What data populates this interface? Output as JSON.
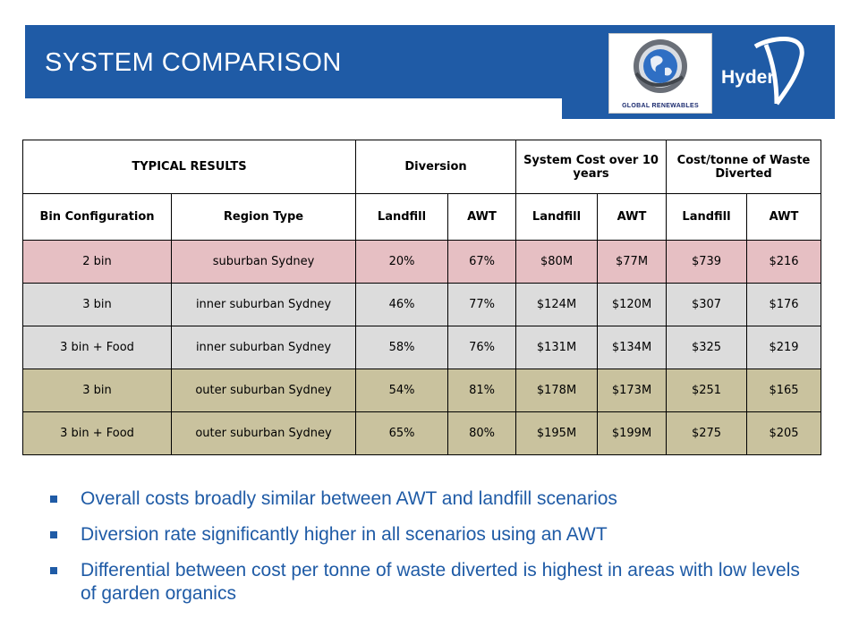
{
  "header": {
    "title": "SYSTEM COMPARISON",
    "partner_logo_text": "GLOBAL RENEWABLES",
    "brand_name": "Hyder",
    "banner_color": "#1f5ba6"
  },
  "table": {
    "group_headers": {
      "typical_results": "TYPICAL RESULTS",
      "diversion": "Diversion",
      "system_cost": "System Cost over 10 years",
      "cost_per_tonne": "Cost/tonne of Waste Diverted"
    },
    "columns": [
      "Bin Configuration",
      "Region Type",
      "Landfill",
      "AWT",
      "Landfill",
      "AWT",
      "Landfill",
      "AWT"
    ],
    "rows": [
      {
        "cells": [
          "2 bin",
          "suburban Sydney",
          "20%",
          "67%",
          "$80M",
          "$77M",
          "$739",
          "$216"
        ]
      },
      {
        "cells": [
          "3 bin",
          "inner suburban Sydney",
          "46%",
          "77%",
          "$124M",
          "$120M",
          "$307",
          "$176"
        ]
      },
      {
        "cells": [
          "3 bin + Food",
          "inner suburban Sydney",
          "58%",
          "76%",
          "$131M",
          "$134M",
          "$325",
          "$219"
        ]
      },
      {
        "cells": [
          "3 bin",
          "outer suburban Sydney",
          "54%",
          "81%",
          "$178M",
          "$173M",
          "$251",
          "$165"
        ]
      },
      {
        "cells": [
          "3 bin + Food",
          "outer suburban Sydney",
          "65%",
          "80%",
          "$195M",
          "$199M",
          "$275",
          "$205"
        ]
      }
    ],
    "row_colors": [
      "#e6bfc3",
      "#dcdcdc",
      "#dcdcdc",
      "#c9c29e",
      "#c9c29e"
    ]
  },
  "bullets": [
    "Overall costs broadly similar between AWT and landfill scenarios",
    "Diversion rate significantly higher in all scenarios using an AWT",
    "Differential between cost per tonne of waste diverted is highest in areas with low levels of garden organics"
  ]
}
